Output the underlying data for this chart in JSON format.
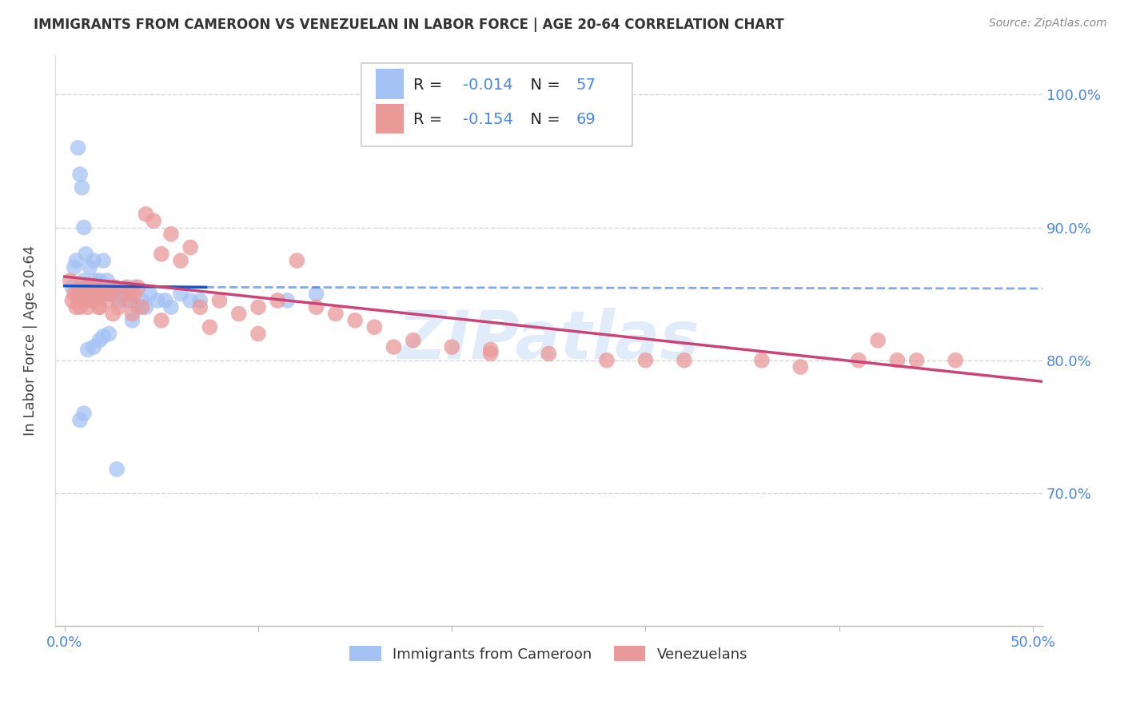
{
  "title": "IMMIGRANTS FROM CAMEROON VS VENEZUELAN IN LABOR FORCE | AGE 20-64 CORRELATION CHART",
  "source": "Source: ZipAtlas.com",
  "ylabel": "In Labor Force | Age 20-64",
  "xlim": [
    -0.005,
    0.505
  ],
  "ylim": [
    0.6,
    1.03
  ],
  "yticks": [
    0.7,
    0.8,
    0.9,
    1.0
  ],
  "ytick_labels": [
    "70.0%",
    "80.0%",
    "90.0%",
    "100.0%"
  ],
  "xticks": [
    0.0,
    0.1,
    0.2,
    0.3,
    0.4,
    0.5
  ],
  "xtick_labels": [
    "0.0%",
    "",
    "",
    "",
    "",
    "50.0%"
  ],
  "legend_cameroon": "Immigrants from Cameroon",
  "legend_venezuelan": "Venezuelans",
  "R_cameroon": "-0.014",
  "N_cameroon": "57",
  "R_venezuelan": "-0.154",
  "N_venezuelan": "69",
  "cameroon_color": "#a4c2f4",
  "venezuelan_color": "#ea9999",
  "cameroon_line_color": "#1155cc",
  "venezuelan_line_color": "#cc4477",
  "watermark": "ZIPatlas",
  "bg_color": "#ffffff",
  "tick_color": "#4a86e8",
  "legend_text_color": "#4a86e8",
  "grid_color": "#cccccc",
  "title_color": "#333333",
  "source_color": "#888888"
}
